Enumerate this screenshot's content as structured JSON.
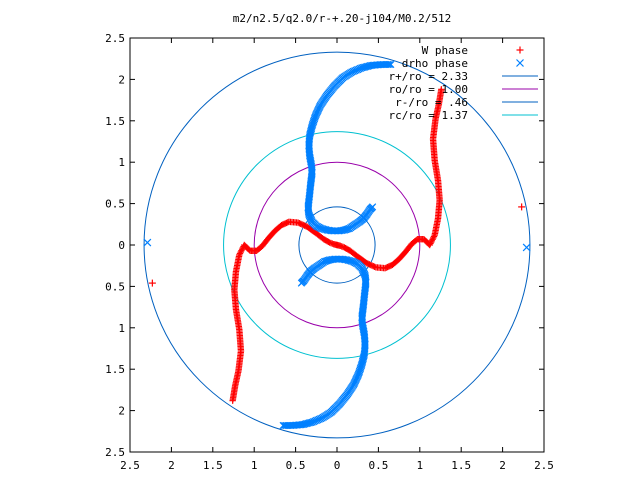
{
  "chart_data": {
    "type": "scatter",
    "title": "m2/n2.5/q2.0/r-+.20-j104/M0.2/512",
    "xlim": [
      -2.5,
      2.5
    ],
    "ylim": [
      -2.5,
      2.5
    ],
    "x_tick_labels": [
      "2.5",
      "2",
      "1.5",
      "1",
      "0.5",
      "0",
      "0.5",
      "1",
      "1.5",
      "2",
      "2.5"
    ],
    "y_tick_labels": [
      "2.5",
      "2",
      "1.5",
      "1",
      "0.5",
      "0",
      "0.5",
      "1",
      "1.5",
      "2",
      "2.5"
    ],
    "legend_placement": "top-right",
    "grid": false,
    "series": [
      {
        "name": "W phase",
        "marker": "plus",
        "color": "#ff0000",
        "arms": [
          [
            [
              0.0,
              0.0
            ],
            [
              0.04,
              -0.01
            ],
            [
              0.09,
              -0.03
            ],
            [
              0.16,
              -0.07
            ],
            [
              0.25,
              -0.14
            ],
            [
              0.36,
              -0.22
            ],
            [
              0.47,
              -0.27
            ],
            [
              0.58,
              -0.28
            ],
            [
              0.67,
              -0.24
            ],
            [
              0.75,
              -0.17
            ],
            [
              0.83,
              -0.08
            ],
            [
              0.9,
              0.01
            ],
            [
              0.97,
              0.07
            ],
            [
              1.05,
              0.07
            ],
            [
              1.12,
              0.0
            ],
            [
              1.18,
              0.12
            ],
            [
              1.22,
              0.32
            ],
            [
              1.24,
              0.54
            ],
            [
              1.22,
              0.78
            ],
            [
              1.18,
              1.02
            ],
            [
              1.16,
              1.28
            ],
            [
              1.19,
              1.52
            ],
            [
              1.23,
              1.7
            ],
            [
              1.26,
              1.88
            ]
          ],
          [
            [
              -0.0,
              -0.0
            ],
            [
              -0.04,
              0.01
            ],
            [
              -0.09,
              0.03
            ],
            [
              -0.16,
              0.07
            ],
            [
              -0.25,
              0.14
            ],
            [
              -0.36,
              0.22
            ],
            [
              -0.47,
              0.27
            ],
            [
              -0.58,
              0.28
            ],
            [
              -0.67,
              0.24
            ],
            [
              -0.75,
              0.17
            ],
            [
              -0.83,
              0.08
            ],
            [
              -0.9,
              -0.01
            ],
            [
              -0.97,
              -0.07
            ],
            [
              -1.05,
              -0.07
            ],
            [
              -1.12,
              -0.0
            ],
            [
              -1.18,
              -0.12
            ],
            [
              -1.22,
              -0.32
            ],
            [
              -1.24,
              -0.54
            ],
            [
              -1.22,
              -0.78
            ],
            [
              -1.18,
              -1.02
            ],
            [
              -1.16,
              -1.28
            ],
            [
              -1.19,
              -1.52
            ],
            [
              -1.23,
              -1.7
            ],
            [
              -1.26,
              -1.88
            ]
          ]
        ],
        "isolated": [
          [
            2.23,
            0.46
          ],
          [
            -2.23,
            -0.46
          ]
        ]
      },
      {
        "name": "drho phase",
        "marker": "cross",
        "color": "#0080ff",
        "arms": [
          [
            [
              0.43,
              0.46
            ],
            [
              0.4,
              0.43
            ],
            [
              0.36,
              0.37
            ],
            [
              0.32,
              0.32
            ],
            [
              0.27,
              0.28
            ],
            [
              0.21,
              0.24
            ],
            [
              0.15,
              0.2
            ],
            [
              0.09,
              0.18
            ],
            [
              0.02,
              0.17
            ],
            [
              -0.05,
              0.17
            ],
            [
              -0.12,
              0.18
            ],
            [
              -0.19,
              0.2
            ],
            [
              -0.25,
              0.23
            ],
            [
              -0.3,
              0.28
            ],
            [
              -0.34,
              0.37
            ],
            [
              -0.35,
              0.45
            ],
            [
              -0.34,
              0.53
            ],
            [
              -0.33,
              0.62
            ],
            [
              -0.32,
              0.72
            ],
            [
              -0.31,
              0.8
            ],
            [
              -0.3,
              0.88
            ],
            [
              -0.31,
              0.97
            ],
            [
              -0.33,
              1.08
            ],
            [
              -0.34,
              1.2
            ],
            [
              -0.33,
              1.32
            ],
            [
              -0.3,
              1.44
            ],
            [
              -0.26,
              1.56
            ],
            [
              -0.2,
              1.69
            ],
            [
              -0.12,
              1.81
            ],
            [
              -0.03,
              1.92
            ],
            [
              0.07,
              2.02
            ],
            [
              0.18,
              2.09
            ],
            [
              0.3,
              2.14
            ],
            [
              0.42,
              2.17
            ],
            [
              0.54,
              2.18
            ],
            [
              0.65,
              2.18
            ]
          ],
          [
            [
              -0.43,
              -0.46
            ],
            [
              -0.4,
              -0.43
            ],
            [
              -0.36,
              -0.37
            ],
            [
              -0.32,
              -0.32
            ],
            [
              -0.27,
              -0.28
            ],
            [
              -0.21,
              -0.24
            ],
            [
              -0.15,
              -0.2
            ],
            [
              -0.09,
              -0.18
            ],
            [
              -0.02,
              -0.17
            ],
            [
              0.05,
              -0.17
            ],
            [
              0.12,
              -0.18
            ],
            [
              0.19,
              -0.2
            ],
            [
              0.25,
              -0.23
            ],
            [
              0.3,
              -0.28
            ],
            [
              0.34,
              -0.37
            ],
            [
              0.35,
              -0.45
            ],
            [
              0.34,
              -0.53
            ],
            [
              0.33,
              -0.62
            ],
            [
              0.32,
              -0.72
            ],
            [
              0.31,
              -0.8
            ],
            [
              0.3,
              -0.88
            ],
            [
              0.31,
              -0.97
            ],
            [
              0.33,
              -1.08
            ],
            [
              0.34,
              -1.2
            ],
            [
              0.33,
              -1.32
            ],
            [
              0.3,
              -1.44
            ],
            [
              0.26,
              -1.56
            ],
            [
              0.2,
              -1.69
            ],
            [
              0.12,
              -1.81
            ],
            [
              0.03,
              -1.92
            ],
            [
              -0.07,
              -2.02
            ],
            [
              -0.18,
              -2.09
            ],
            [
              -0.3,
              -2.14
            ],
            [
              -0.42,
              -2.17
            ],
            [
              -0.54,
              -2.18
            ],
            [
              -0.65,
              -2.18
            ]
          ]
        ],
        "isolated": [
          [
            2.29,
            -0.03
          ],
          [
            -2.29,
            0.03
          ]
        ]
      }
    ],
    "circles": [
      {
        "name": "r+/ro = 2.33",
        "radius": 2.33,
        "color": "#0060c0"
      },
      {
        "name": "ro/ro = 1.00",
        "radius": 1.0,
        "color": "#9900aa"
      },
      {
        "name": "r-/ro = .46",
        "radius": 0.46,
        "color": "#0060c0"
      },
      {
        "name": "rc/ro = 1.37",
        "radius": 1.37,
        "color": "#00c0d0"
      }
    ]
  }
}
